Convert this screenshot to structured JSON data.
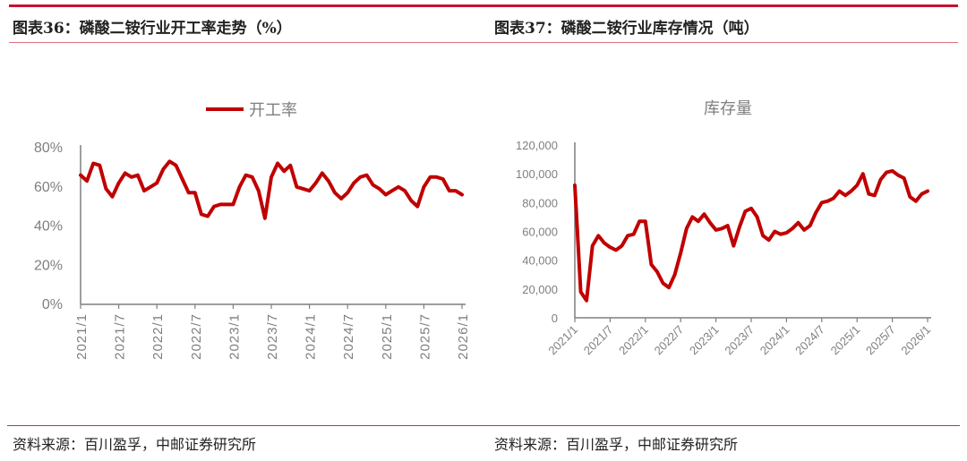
{
  "header": {
    "left_title": "图表36：磷酸二铵行业开工率走势（%）",
    "right_title": "图表37：磷酸二铵行业库存情况（吨）"
  },
  "footer": {
    "left_source": "资料来源：百川盈孚，中邮证券研究所",
    "right_source": "资料来源：百川盈孚，中邮证券研究所"
  },
  "colors": {
    "series": "#c00000",
    "accent_line": "#c8102e",
    "axis": "#7f7f7f"
  },
  "chart_data": [
    {
      "type": "line",
      "title": "",
      "legend": [
        "开工率"
      ],
      "legend_placement": "top",
      "x_ticks": [
        "2021/1",
        "2021/7",
        "2022/1",
        "2022/7",
        "2023/1",
        "2023/7",
        "2024/1",
        "2024/7",
        "2025/1",
        "2025/7",
        "2026/1"
      ],
      "y_ticks": [
        "0%",
        "20%",
        "40%",
        "60%",
        "80%"
      ],
      "ylim": [
        0,
        80
      ],
      "grid": false,
      "x_start": "2021-01",
      "x_step": "month",
      "series": [
        {
          "name": "开工率",
          "values": [
            66,
            63,
            72,
            71,
            59,
            55,
            62,
            67,
            65,
            66,
            58,
            60,
            62,
            69,
            73,
            71,
            64,
            57,
            57,
            46,
            45,
            50,
            51,
            51,
            51,
            60,
            66,
            65,
            58,
            44,
            65,
            72,
            68,
            71,
            60,
            59,
            58,
            62,
            67,
            63,
            57,
            54,
            57,
            62,
            65,
            66,
            61,
            59,
            56,
            58,
            60,
            58,
            53,
            50,
            60,
            65,
            65,
            64,
            58,
            58,
            56
          ]
        }
      ]
    },
    {
      "type": "line",
      "title": "库存量",
      "x_ticks": [
        "2021/1",
        "2021/7",
        "2022/1",
        "2022/7",
        "2023/1",
        "2023/7",
        "2024/1",
        "2024/7",
        "2025/1",
        "2025/7",
        "2026/1"
      ],
      "y_ticks": [
        "0",
        "20,000",
        "40,000",
        "60,000",
        "80,000",
        "100,000",
        "120,000"
      ],
      "ylim": [
        0,
        120000
      ],
      "grid": false,
      "x_start": "2021-01",
      "x_step": "month",
      "series": [
        {
          "name": "库存量",
          "values": [
            92000,
            18000,
            12000,
            50000,
            57000,
            52000,
            49000,
            47000,
            50000,
            57000,
            58000,
            67000,
            67000,
            37000,
            32000,
            24000,
            21000,
            30000,
            45000,
            62000,
            70000,
            67000,
            72000,
            66000,
            61000,
            62000,
            64000,
            50000,
            63000,
            74000,
            76000,
            70000,
            57000,
            54000,
            60000,
            58000,
            59000,
            62000,
            66000,
            61000,
            64000,
            73000,
            80000,
            81000,
            83000,
            88000,
            85000,
            88000,
            92000,
            100000,
            86000,
            85000,
            96000,
            101000,
            102000,
            99000,
            97000,
            84000,
            81000,
            86000,
            88000
          ]
        }
      ]
    }
  ]
}
